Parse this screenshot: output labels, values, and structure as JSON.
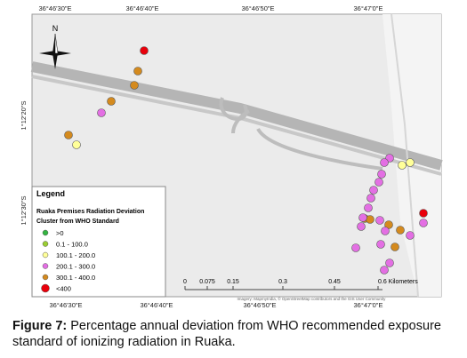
{
  "map": {
    "top_labels": [
      "36°46'30\"E",
      "36°46'40\"E",
      "36°46'50\"E",
      "36°47'0\"E"
    ],
    "bottom_labels": [
      "36°46'30\"E",
      "36°46'40\"E",
      "36°46'50\"E",
      "36°47'0\"E"
    ],
    "left_labels": [
      "1°12'20\"S",
      "1°12'30\"S"
    ],
    "north": "N",
    "legend": {
      "title": "Legend",
      "layer": "Ruaka Premises Radiation Deviation",
      "subtitle": "Cluster from WHO Standard",
      "items": [
        ">0",
        "0.1 - 100.0",
        "100.1 - 200.0",
        "200.1 - 300.0",
        "300.1 - 400.0",
        "<400"
      ]
    },
    "scale": [
      "0",
      "0.075",
      "0.15",
      "0.3",
      "0.45",
      "0.6 Kilometers"
    ],
    "attribution": "Imagery: MapmyIndia, © OpenStreetMap contributors and the GIS User Community"
  },
  "caption": {
    "label": "Figure 7:",
    "text": "Percentage annual deviation from WHO recommended exposure standard of ionizing radiation in Ruaka."
  }
}
